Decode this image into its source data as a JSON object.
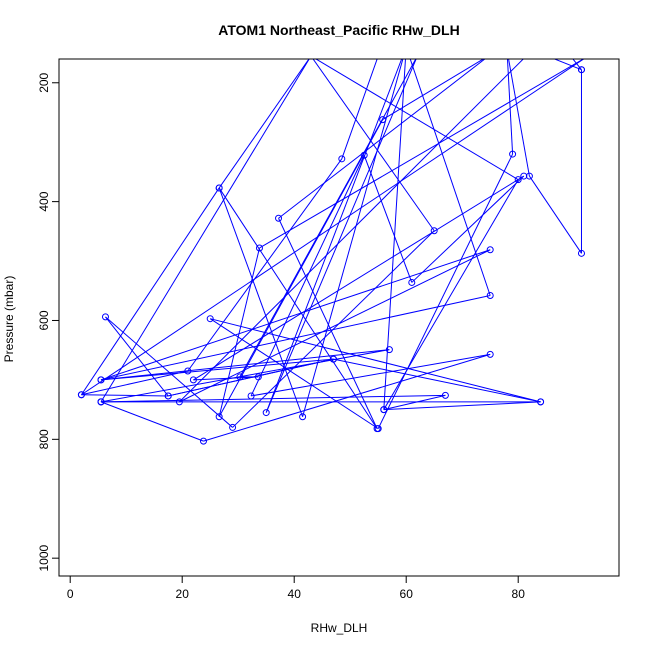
{
  "chart_data": {
    "type": "line",
    "title": "ATOM1 Northeast_Pacific RHw_DLH",
    "xlabel": "RHw_DLH",
    "ylabel": "Pressure (mbar)",
    "xlim": [
      -2,
      98
    ],
    "ylim": [
      1030,
      160
    ],
    "y_reversed": true,
    "x_ticks": [
      0,
      20,
      40,
      60,
      80
    ],
    "y_ticks": [
      200,
      400,
      600,
      800,
      1000
    ],
    "grid": false,
    "series_color": "#0000ff",
    "series": [
      {
        "values": [
          [
            91.3,
            178
          ],
          [
            88.5,
            145
          ],
          [
            55,
            155
          ],
          [
            48.5,
            328
          ],
          [
            21,
            685
          ],
          [
            2,
            725
          ],
          [
            92,
            158
          ],
          [
            33.8,
            478
          ],
          [
            26.6,
            762
          ],
          [
            55.8,
            262
          ],
          [
            75,
            153
          ],
          [
            37.2,
            428
          ],
          [
            54.8,
            782
          ],
          [
            26.6,
            377
          ],
          [
            41.5,
            762
          ],
          [
            60,
            140
          ],
          [
            75,
            558
          ],
          [
            5.5,
            700
          ],
          [
            47,
            665
          ],
          [
            17.5,
            727
          ],
          [
            6.3,
            594
          ],
          [
            29,
            780
          ],
          [
            65,
            449
          ],
          [
            43,
            155
          ],
          [
            80,
            363
          ],
          [
            56,
            750
          ],
          [
            67,
            726
          ],
          [
            5.5,
            737
          ],
          [
            84,
            737
          ],
          [
            25,
            597
          ],
          [
            55,
            782
          ],
          [
            79,
            320
          ],
          [
            78,
            145
          ],
          [
            82,
            357
          ],
          [
            91.3,
            487
          ],
          [
            91.3,
            178
          ],
          [
            82.5,
            145
          ],
          [
            19.5,
            737
          ],
          [
            75,
            481
          ],
          [
            5.5,
            700
          ],
          [
            57,
            649
          ],
          [
            5.5,
            737
          ],
          [
            23.8,
            803
          ],
          [
            75,
            657
          ],
          [
            32.3,
            727
          ],
          [
            52.5,
            322
          ],
          [
            61,
            536
          ],
          [
            81,
            357
          ],
          [
            22,
            700
          ],
          [
            33.6,
            695
          ],
          [
            30.3,
            695
          ],
          [
            62,
            155
          ],
          [
            35,
            755
          ],
          [
            60,
            140
          ],
          [
            56,
            750
          ],
          [
            84,
            737
          ],
          [
            47,
            665
          ],
          [
            17.5,
            727
          ],
          [
            2,
            725
          ],
          [
            26.6,
            377
          ],
          [
            43,
            155
          ],
          [
            5.5,
            737
          ]
        ]
      }
    ]
  }
}
